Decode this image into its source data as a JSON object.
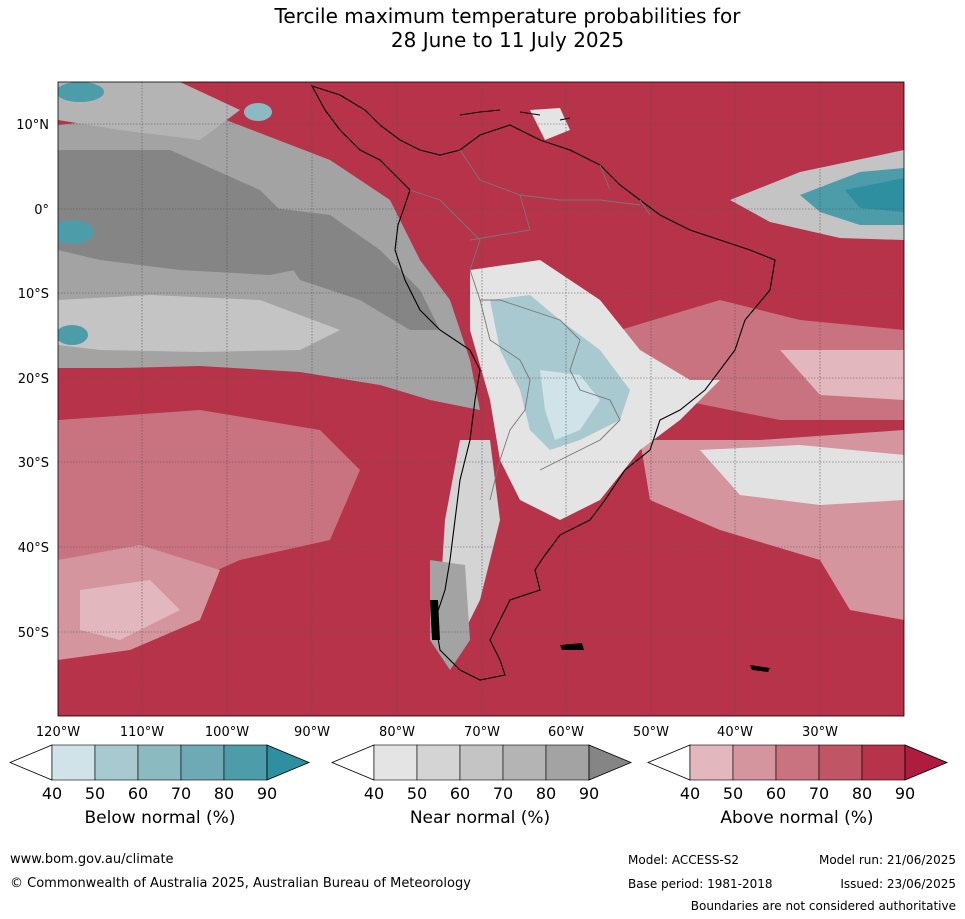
{
  "title_line1": "Tercile maximum temperature probabilities for",
  "title_line2": "28 June to 11 July 2025",
  "lat_labels": [
    "10°N",
    "0°",
    "10°S",
    "20°S",
    "30°S",
    "40°S",
    "50°S"
  ],
  "lon_labels": [
    "120°W",
    "110°W",
    "100°W",
    "90°W",
    "80°W",
    "70°W",
    "60°W",
    "50°W",
    "40°W",
    "30°W"
  ],
  "legends": [
    {
      "title": "Below normal (%)",
      "ticks": [
        "40",
        "50",
        "60",
        "70",
        "80",
        "90"
      ],
      "colors": [
        "#ffffff",
        "#cfe3e8",
        "#a8c9cf",
        "#8bbac1",
        "#6eaab5",
        "#4d9caa",
        "#2e8fa1"
      ]
    },
    {
      "title": "Near normal (%)",
      "ticks": [
        "40",
        "50",
        "60",
        "70",
        "80",
        "90"
      ],
      "colors": [
        "#ffffff",
        "#e4e4e4",
        "#d4d4d4",
        "#c4c4c4",
        "#b4b4b4",
        "#a3a3a3",
        "#858585"
      ]
    },
    {
      "title": "Above normal (%)",
      "ticks": [
        "40",
        "50",
        "60",
        "70",
        "80",
        "90"
      ],
      "colors": [
        "#ffffff",
        "#e2b7bd",
        "#d5959e",
        "#c8737f",
        "#c05565",
        "#b6334a",
        "#b01c3d"
      ]
    }
  ],
  "footer": {
    "website": "www.bom.gov.au/climate",
    "copyright": "© Commonwealth of Australia 2025, Australian Bureau of Meteorology",
    "model": "Model: ACCESS-S2",
    "base_period": "Base period: 1981-2018",
    "model_run": "Model run: 21/06/2025",
    "issued": "Issued: 23/06/2025",
    "disclaimer": "Boundaries are not considered authoritative"
  }
}
